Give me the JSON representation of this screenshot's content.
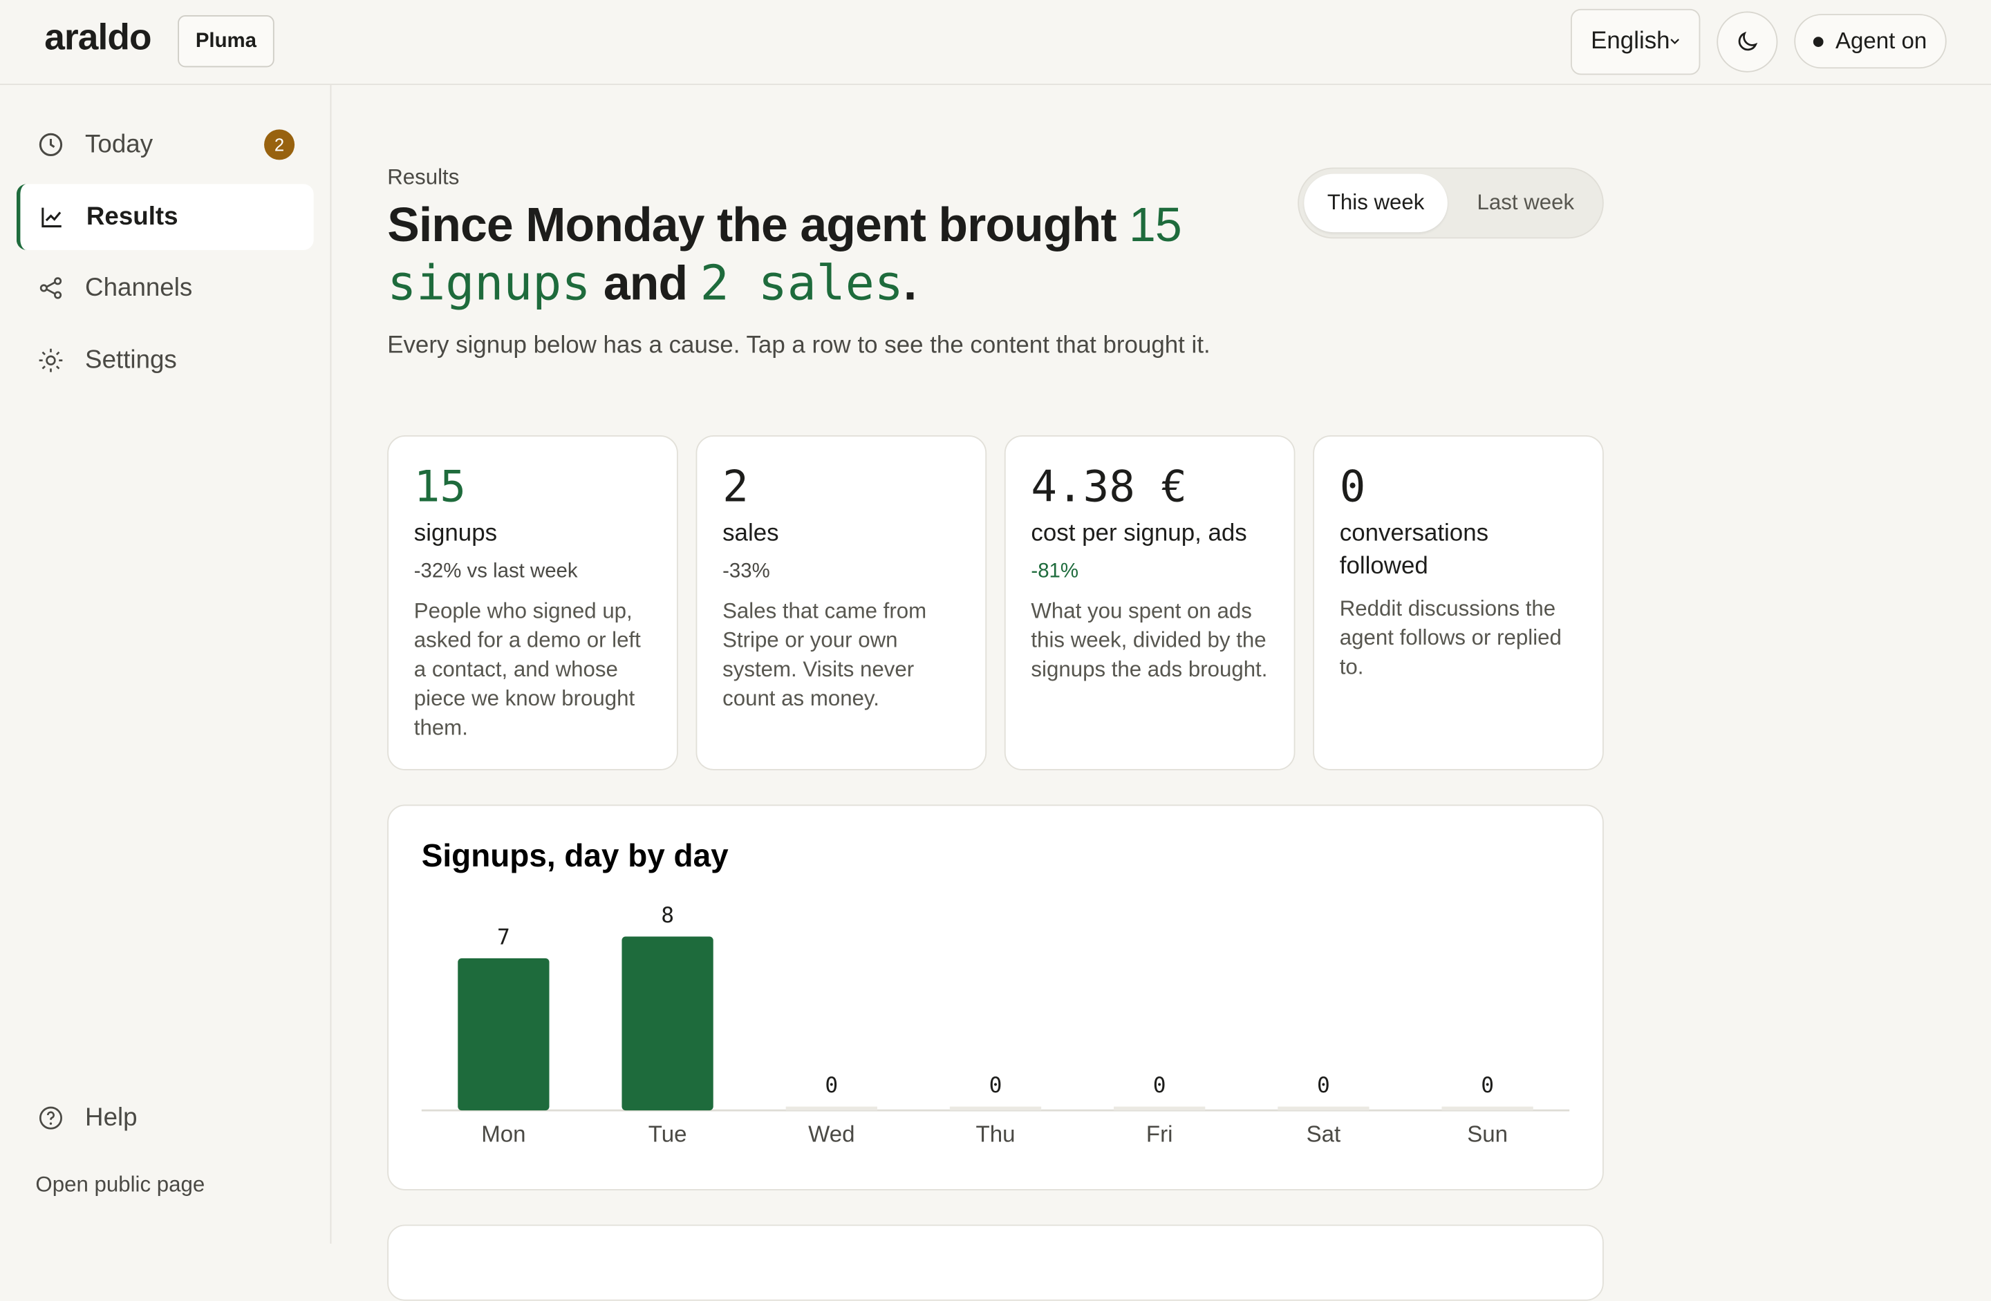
{
  "header": {
    "logo": "araldo",
    "workspace": "Pluma",
    "language": "English",
    "agent_status": "Agent on"
  },
  "sidebar": {
    "nav": [
      {
        "label": "Today",
        "badge": "2"
      },
      {
        "label": "Results"
      },
      {
        "label": "Channels"
      },
      {
        "label": "Settings"
      }
    ],
    "help": "Help",
    "public_page": "Open public page"
  },
  "page": {
    "eyebrow": "Results",
    "headline": [
      "Since Monday the agent brought",
      "15",
      "signups",
      "and",
      "2 sales",
      "."
    ],
    "subtitle": "Every signup below has a cause. Tap a row to see the content that brought it.",
    "periods": [
      "This week",
      "Last week"
    ]
  },
  "cards": [
    {
      "value": "15",
      "label": "signups",
      "delta": "-32% vs last week",
      "description": "People who signed up, asked for a demo or left a contact, and whose piece we know brought them."
    },
    {
      "value": "2",
      "label": "sales",
      "delta": "-33%",
      "description": "Sales that came from Stripe or your own system. Visits never count as money."
    },
    {
      "value": "4.38 €",
      "label": "cost per signup, ads",
      "delta": "-81%",
      "description": "What you spent on ads this week, divided by the signups the ads brought."
    },
    {
      "value": "0",
      "label": "conversations followed",
      "description": "Reddit discussions the agent follows or replied to."
    }
  ],
  "chart_data": {
    "type": "bar",
    "title": "Signups, day by day",
    "categories": [
      "Mon",
      "Tue",
      "Wed",
      "Thu",
      "Fri",
      "Sat",
      "Sun"
    ],
    "values": [
      7,
      8,
      0,
      0,
      0,
      0,
      0
    ],
    "color": "#1e6b3c",
    "ylim": [
      0,
      8
    ]
  }
}
